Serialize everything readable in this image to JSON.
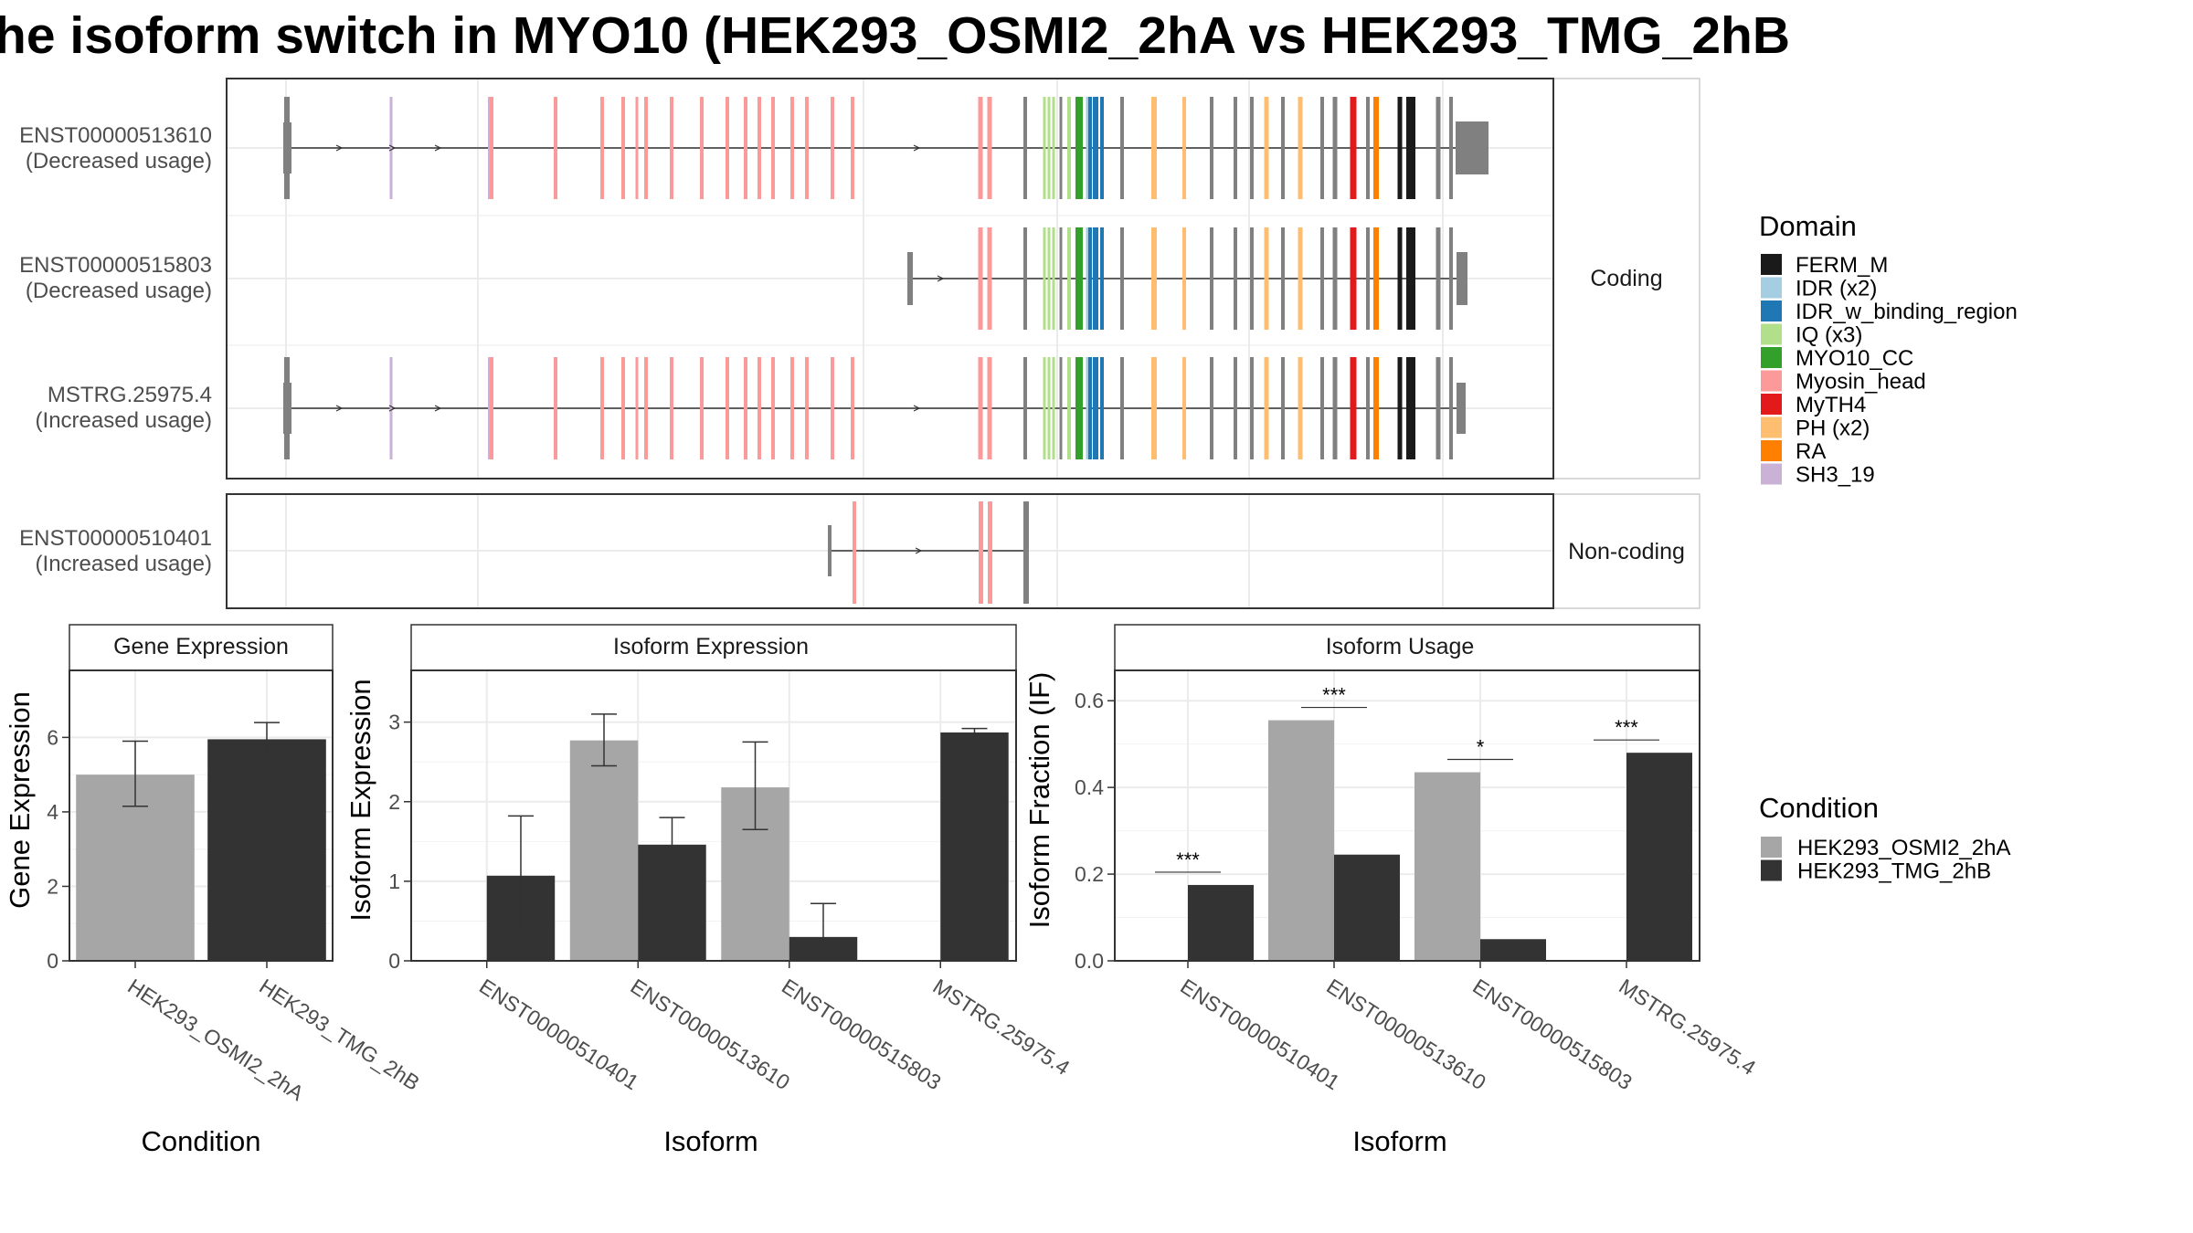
{
  "title": "he isoform switch in MYO10 (HEK293_OSMI2_2hA vs HEK293_TMG_2hB",
  "structure": {
    "coding_label": "Coding",
    "noncoding_label": "Non-coding",
    "transcripts": [
      {
        "id": "ENST00000513610",
        "usage": "(Decreased usage)",
        "panel": "coding"
      },
      {
        "id": "ENST00000515803",
        "usage": "(Decreased usage)",
        "panel": "coding"
      },
      {
        "id": "MSTRG.25975.4",
        "usage": "(Increased usage)",
        "panel": "coding"
      },
      {
        "id": "ENST00000510401",
        "usage": "(Increased usage)",
        "panel": "noncoding"
      }
    ]
  },
  "domain_legend": {
    "title": "Domain",
    "items": [
      {
        "name": "FERM_M",
        "color": "#1a1a1a"
      },
      {
        "name": "IDR (x2)",
        "color": "#a6cee3"
      },
      {
        "name": "IDR_w_binding_region",
        "color": "#1f78b4"
      },
      {
        "name": "IQ (x3)",
        "color": "#b2df8a"
      },
      {
        "name": "MYO10_CC",
        "color": "#33a02c"
      },
      {
        "name": "Myosin_head",
        "color": "#fb9a99"
      },
      {
        "name": "MyTH4",
        "color": "#e31a1c"
      },
      {
        "name": "PH (x2)",
        "color": "#fdbf6f"
      },
      {
        "name": "RA",
        "color": "#ff7f00"
      },
      {
        "name": "SH3_19",
        "color": "#cab2d6"
      }
    ]
  },
  "condition_legend": {
    "title": "Condition",
    "items": [
      {
        "name": "HEK293_OSMI2_2hA",
        "color": "#a6a6a6"
      },
      {
        "name": "HEK293_TMG_2hB",
        "color": "#333333"
      }
    ]
  },
  "chart_data": [
    {
      "type": "bar",
      "title": "Gene Expression",
      "xlabel": "Condition",
      "ylabel": "Gene Expression",
      "categories": [
        "HEK293_OSMI2_2hA",
        "HEK293_TMG_2hB"
      ],
      "values": [
        5.0,
        5.95
      ],
      "errors": [
        [
          4.15,
          5.9
        ],
        [
          5.5,
          6.4
        ]
      ],
      "ylim": [
        0,
        7.8
      ],
      "yticks": [
        0,
        2,
        4,
        6
      ]
    },
    {
      "type": "bar",
      "title": "Isoform Expression",
      "xlabel": "Isoform",
      "ylabel": "Isoform Expression",
      "categories": [
        "ENST00000510401",
        "ENST00000513610",
        "ENST00000515803",
        "MSTRG.25975.4"
      ],
      "series": [
        {
          "name": "HEK293_OSMI2_2hA",
          "values": [
            0,
            2.77,
            2.18,
            0
          ],
          "errors": [
            [
              0,
              0
            ],
            [
              2.45,
              3.1
            ],
            [
              1.65,
              2.75
            ],
            [
              0,
              0
            ]
          ]
        },
        {
          "name": "HEK293_TMG_2hB",
          "values": [
            1.07,
            1.46,
            0.3,
            2.87
          ],
          "errors": [
            [
              0.32,
              1.82
            ],
            [
              1.12,
              1.8
            ],
            [
              0,
              0.72
            ],
            [
              2.82,
              2.92
            ]
          ]
        }
      ],
      "ylim": [
        0,
        3.65
      ],
      "yticks": [
        0,
        1,
        2,
        3
      ]
    },
    {
      "type": "bar",
      "title": "Isoform Usage",
      "xlabel": "Isoform",
      "ylabel": "Isoform Fraction (IF)",
      "categories": [
        "ENST00000510401",
        "ENST00000513610",
        "ENST00000515803",
        "MSTRG.25975.4"
      ],
      "series": [
        {
          "name": "HEK293_OSMI2_2hA",
          "values": [
            0,
            0.555,
            0.435,
            0
          ]
        },
        {
          "name": "HEK293_TMG_2hB",
          "values": [
            0.175,
            0.245,
            0.05,
            0.48
          ]
        }
      ],
      "significance": [
        "***",
        "***",
        "*",
        "***"
      ],
      "ylim": [
        0,
        0.67
      ],
      "yticks": [
        0.0,
        0.2,
        0.4,
        0.6
      ],
      "ytick_labels": [
        "0.0",
        "0.2",
        "0.4",
        "0.6"
      ]
    }
  ]
}
